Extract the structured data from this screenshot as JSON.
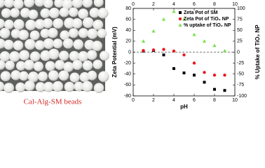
{
  "caption": "Cal-Alg-SM beads",
  "chart_data": {
    "type": "scatter",
    "x_label": "pH",
    "y_label": "Zeta Potential (mV)",
    "y2_label": "% Uptake of TiO₂ NP",
    "x": [
      1,
      2,
      3,
      4,
      5,
      6,
      7,
      8,
      9
    ],
    "xlim": [
      0,
      10
    ],
    "xticks": [
      0,
      2,
      4,
      6,
      8,
      10
    ],
    "ylim": [
      -80,
      80
    ],
    "yticks": [
      80,
      60,
      40,
      20,
      0,
      -20,
      -40,
      -60,
      -80
    ],
    "y2lim": [
      -100,
      100
    ],
    "y2ticks": [
      100,
      75,
      50,
      25,
      0,
      -25,
      -50,
      -75,
      -100
    ],
    "zero_line": true,
    "legend": "top-right",
    "series": [
      {
        "name": "Zeta Pot of SM",
        "color": "#000000",
        "marker": "square",
        "values": [
          2,
          3,
          -5,
          -30,
          -38,
          -42,
          -55,
          -68,
          -70
        ]
      },
      {
        "name": "Zeta Pot of TiO₂ NP",
        "color": "#e8191e",
        "marker": "circle",
        "values": [
          3,
          4,
          5,
          2,
          -5,
          -20,
          -37,
          -42,
          -42
        ]
      },
      {
        "name": "% uptake of TiO₂ NP",
        "color": "#7be04a",
        "marker": "triangle",
        "axis": "y2",
        "values": [
          25,
          48,
          75,
          93,
          75,
          40,
          25,
          15,
          3
        ]
      }
    ]
  }
}
